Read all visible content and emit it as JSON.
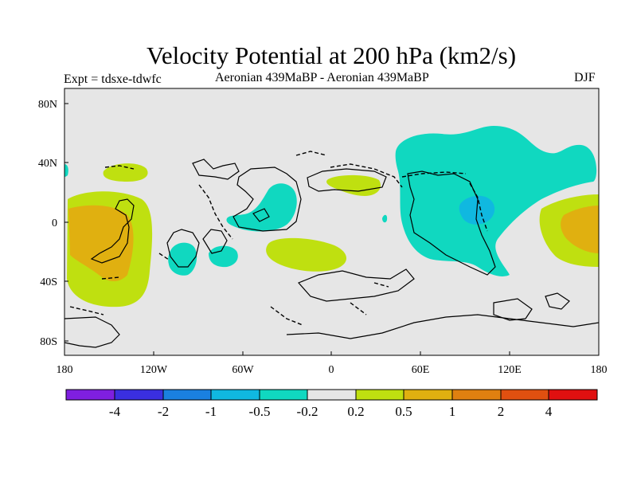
{
  "title": "Velocity Potential at 200 hPa (km2/s)",
  "subtitle_left": "Expt = tdsxe-tdwfc",
  "subtitle_center": "Aeronian 439MaBP - Aeronian 439MaBP",
  "subtitle_right": "DJF",
  "map": {
    "projection": "equirectangular",
    "lon_range": [
      -180,
      180
    ],
    "lat_range": [
      -90,
      90
    ],
    "background_color": "#e6e6e6",
    "x_ticks": [
      "180",
      "120W",
      "60W",
      "0",
      "60E",
      "120E",
      "180"
    ],
    "y_ticks": [
      "80N",
      "40N",
      "0",
      "40S",
      "80S"
    ]
  },
  "colorbar": {
    "colors": [
      "#7f1fe0",
      "#3a2fe0",
      "#1a80e0",
      "#10b8e0",
      "#10d8c0",
      "#e6e6e6",
      "#bfe010",
      "#e0b010",
      "#e08010",
      "#e05010",
      "#e01010"
    ],
    "labels": [
      "-4",
      "-2",
      "-1",
      "-0.5",
      "-0.2",
      "0.2",
      "0.5",
      "1",
      "2",
      "4"
    ]
  }
}
